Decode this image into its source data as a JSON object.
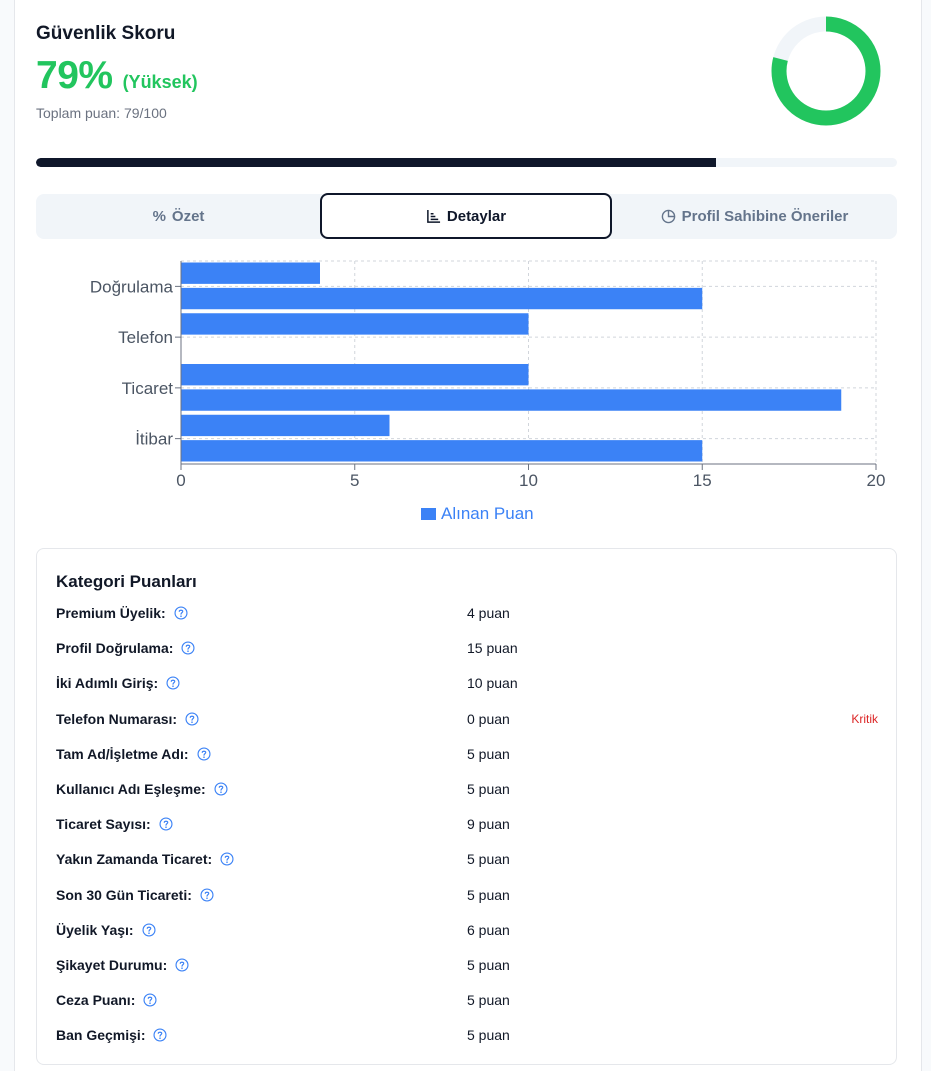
{
  "header": {
    "title": "Güvenlik Skoru",
    "score_pct": "79%",
    "score_level": "(Yüksek)",
    "total_label": "Toplam puan: 79/100",
    "score_fraction": 0.79
  },
  "colors": {
    "accent_green": "#22c55e",
    "progress_dark": "#0f172a",
    "bar_blue": "#3b82f6",
    "critical_red": "#dc2626"
  },
  "tabs": [
    {
      "label": "Özet",
      "icon": "percent-icon",
      "active": false
    },
    {
      "label": "Detaylar",
      "icon": "bar-chart-icon",
      "active": true
    },
    {
      "label": "Profil Sahibine Öneriler",
      "icon": "pie-chart-icon",
      "active": false
    }
  ],
  "chart_data": {
    "type": "bar",
    "orientation": "horizontal",
    "categories": [
      "Premium Üyelik",
      "Doğrulama",
      "İki Adımlı Giriş",
      "Telefon",
      "Tam Ad/İşletme Adı",
      "Ticaret",
      "Üyelik Yaşı",
      "İtibar"
    ],
    "y_tick_labels": [
      "Doğrulama",
      "Telefon",
      "Ticaret",
      "İtibar"
    ],
    "series": [
      {
        "name": "Alınan Puan",
        "values": [
          4,
          15,
          10,
          0,
          10,
          19,
          6,
          15
        ]
      }
    ],
    "xlim": [
      0,
      20
    ],
    "x_ticks": [
      0,
      5,
      10,
      15,
      20
    ],
    "grid": true,
    "legend": "bottom-center"
  },
  "categories_card": {
    "title": "Kategori Puanları",
    "rows": [
      {
        "label": "Premium Üyelik:",
        "value": "4 puan",
        "badge": ""
      },
      {
        "label": "Profil Doğrulama:",
        "value": "15 puan",
        "badge": ""
      },
      {
        "label": "İki Adımlı Giriş:",
        "value": "10 puan",
        "badge": ""
      },
      {
        "label": "Telefon Numarası:",
        "value": "0 puan",
        "badge": "Kritik"
      },
      {
        "label": "Tam Ad/İşletme Adı:",
        "value": "5 puan",
        "badge": ""
      },
      {
        "label": "Kullanıcı Adı Eşleşme:",
        "value": "5 puan",
        "badge": ""
      },
      {
        "label": "Ticaret Sayısı:",
        "value": "9 puan",
        "badge": ""
      },
      {
        "label": "Yakın Zamanda Ticaret:",
        "value": "5 puan",
        "badge": ""
      },
      {
        "label": "Son 30 Gün Ticareti:",
        "value": "5 puan",
        "badge": ""
      },
      {
        "label": "Üyelik Yaşı:",
        "value": "6 puan",
        "badge": ""
      },
      {
        "label": "Şikayet Durumu:",
        "value": "5 puan",
        "badge": ""
      },
      {
        "label": "Ceza Puanı:",
        "value": "5 puan",
        "badge": ""
      },
      {
        "label": "Ban Geçmişi:",
        "value": "5 puan",
        "badge": ""
      }
    ]
  }
}
